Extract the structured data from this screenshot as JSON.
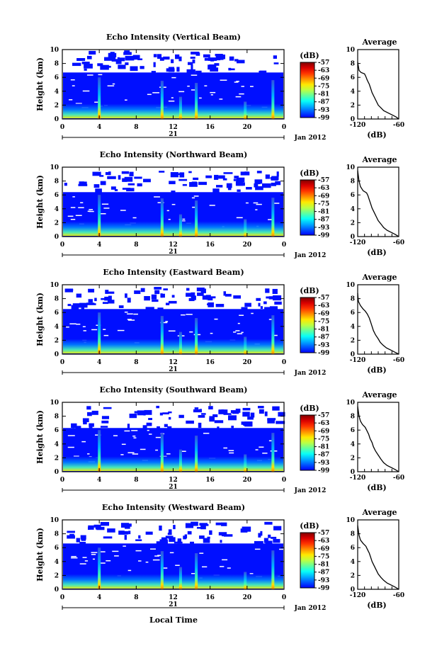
{
  "chart_data": {
    "type": "heatmap",
    "date_label": "Jan 2012",
    "day_label": "21",
    "xlabel": "Local Time",
    "ylabel": "Height (km)",
    "x_ticks": [
      "0",
      "4",
      "8",
      "12",
      "16",
      "20",
      "0"
    ],
    "y_ticks": [
      "0",
      "2",
      "4",
      "6",
      "8",
      "10"
    ],
    "xlim": [
      0,
      24
    ],
    "ylim": [
      0,
      10
    ],
    "colorbar": {
      "unit_label": "(dB)",
      "ticks": [
        "-57",
        "-63",
        "-69",
        "-75",
        "-81",
        "-87",
        "-93",
        "-99"
      ],
      "range": [
        -99,
        -57
      ]
    },
    "avg_profile": {
      "title": "Average",
      "xlabel": "(dB)",
      "x_ticks": [
        "-120",
        "-60"
      ],
      "y_ticks": [
        "0",
        "2",
        "4",
        "6",
        "8",
        "10"
      ],
      "xlim": [
        -120,
        -60
      ],
      "ylim": [
        0,
        10
      ]
    },
    "panels": [
      {
        "title": "Echo Intensity (Vertical Beam)",
        "spikes": [
          4,
          10.8,
          12.8,
          14.5,
          19.8,
          22.8
        ],
        "echo_top_km": 6.7,
        "avg_profile": [
          [
            -60,
            0
          ],
          [
            -64,
            0.3
          ],
          [
            -70,
            0.6
          ],
          [
            -76,
            0.9
          ],
          [
            -82,
            1.2
          ],
          [
            -86,
            1.6
          ],
          [
            -90,
            2.0
          ],
          [
            -93,
            2.6
          ],
          [
            -96,
            3.2
          ],
          [
            -99,
            3.8
          ],
          [
            -101,
            4.4
          ],
          [
            -103,
            5.0
          ],
          [
            -106,
            5.6
          ],
          [
            -108,
            6.1
          ],
          [
            -110,
            6.5
          ],
          [
            -115,
            6.7
          ],
          [
            -118,
            7.0
          ],
          [
            -120,
            8.2
          ]
        ]
      },
      {
        "title": "Echo Intensity (Northward Beam)",
        "spikes": [
          4,
          10.8,
          12.8,
          14.5,
          19.8,
          22.8
        ],
        "echo_top_km": 6.4,
        "avg_profile": [
          [
            -60,
            0
          ],
          [
            -65,
            0.3
          ],
          [
            -71,
            0.6
          ],
          [
            -77,
            0.9
          ],
          [
            -82,
            1.3
          ],
          [
            -86,
            1.8
          ],
          [
            -90,
            2.3
          ],
          [
            -93,
            2.9
          ],
          [
            -96,
            3.5
          ],
          [
            -99,
            4.1
          ],
          [
            -101,
            4.7
          ],
          [
            -103,
            5.3
          ],
          [
            -105,
            5.9
          ],
          [
            -107,
            6.3
          ],
          [
            -112,
            6.6
          ],
          [
            -116,
            7.2
          ],
          [
            -118,
            8.0
          ],
          [
            -120,
            9.5
          ]
        ]
      },
      {
        "title": "Echo Intensity (Eastward Beam)",
        "spikes": [
          4,
          10.8,
          12.8,
          14.5,
          19.8,
          22.8
        ],
        "echo_top_km": 6.5,
        "avg_profile": [
          [
            -60,
            0
          ],
          [
            -66,
            0.3
          ],
          [
            -72,
            0.6
          ],
          [
            -78,
            0.9
          ],
          [
            -83,
            1.3
          ],
          [
            -87,
            1.7
          ],
          [
            -90,
            2.2
          ],
          [
            -94,
            2.8
          ],
          [
            -97,
            3.4
          ],
          [
            -99,
            4.0
          ],
          [
            -101,
            4.6
          ],
          [
            -103,
            5.2
          ],
          [
            -106,
            5.8
          ],
          [
            -109,
            6.2
          ],
          [
            -112,
            6.5
          ],
          [
            -116,
            7.0
          ],
          [
            -119,
            7.6
          ],
          [
            -120,
            8.8
          ]
        ]
      },
      {
        "title": "Echo Intensity (Southward Beam)",
        "spikes": [
          4,
          10.8,
          12.8,
          14.5,
          19.8,
          22.8
        ],
        "echo_top_km": 6.3,
        "avg_profile": [
          [
            -60,
            0
          ],
          [
            -65,
            0.3
          ],
          [
            -71,
            0.6
          ],
          [
            -77,
            0.9
          ],
          [
            -82,
            1.3
          ],
          [
            -86,
            1.8
          ],
          [
            -90,
            2.4
          ],
          [
            -94,
            3.0
          ],
          [
            -97,
            3.6
          ],
          [
            -99,
            4.2
          ],
          [
            -102,
            4.8
          ],
          [
            -104,
            5.4
          ],
          [
            -107,
            6.0
          ],
          [
            -109,
            6.4
          ],
          [
            -113,
            6.8
          ],
          [
            -116,
            7.3
          ],
          [
            -118,
            8.0
          ],
          [
            -120,
            9.4
          ]
        ]
      },
      {
        "title": "Echo Intensity (Westward Beam)",
        "spikes": [
          4,
          10.8,
          12.8,
          14.5,
          19.8,
          22.8
        ],
        "echo_top_km": 6.6,
        "avg_profile": [
          [
            -60,
            0
          ],
          [
            -65,
            0.3
          ],
          [
            -71,
            0.6
          ],
          [
            -77,
            0.9
          ],
          [
            -82,
            1.3
          ],
          [
            -86,
            1.7
          ],
          [
            -90,
            2.2
          ],
          [
            -93,
            2.8
          ],
          [
            -96,
            3.4
          ],
          [
            -99,
            4.0
          ],
          [
            -101,
            4.6
          ],
          [
            -103,
            5.2
          ],
          [
            -106,
            5.8
          ],
          [
            -108,
            6.2
          ],
          [
            -112,
            6.6
          ],
          [
            -116,
            7.1
          ],
          [
            -118,
            7.8
          ],
          [
            -120,
            9.2
          ]
        ]
      }
    ]
  }
}
